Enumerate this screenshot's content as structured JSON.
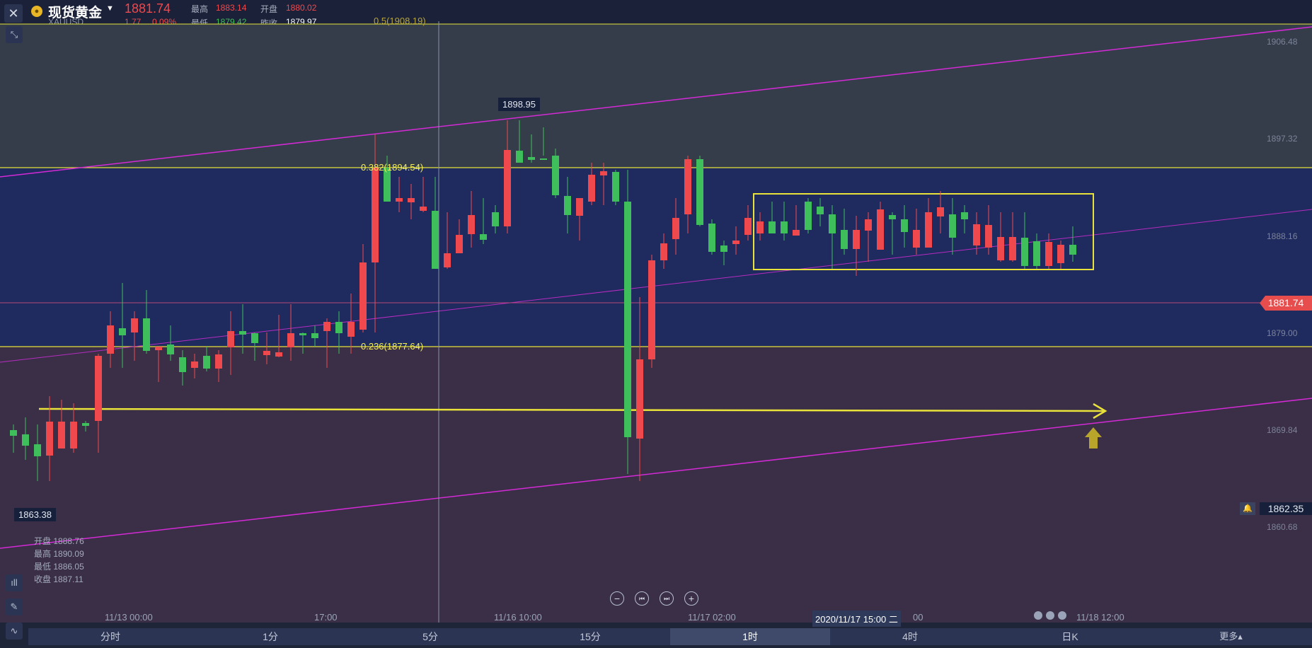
{
  "header": {
    "close_glyph": "✕",
    "coin_glyph": "●",
    "title": "现货黄金",
    "caret": "▼",
    "symbol": "XAUUSD",
    "price": "1881.74",
    "change": "1.77",
    "change_pct": "0.09%",
    "high_label": "最高",
    "high": "1883.14",
    "open_label": "开盘",
    "open": "1880.02",
    "low_label": "最低",
    "low": "1879.42",
    "prev_close_label": "昨收",
    "prev_close": "1879.97"
  },
  "left_tools": {
    "top_tool": "⤡",
    "indicator": "ıll",
    "draw": "✎",
    "chart_type": "∿"
  },
  "chart": {
    "fib_top_label": "0.5(1908.19)",
    "fib_382_label": "0.382(1894.54)",
    "fib_236_label": "0.236(1877.64)",
    "high_marker": "1898.95",
    "low_marker": "1863.38",
    "price_tag": "1881.74",
    "alert_price": "1862.35",
    "bell_glyph": "🔔",
    "y_labels": [
      "1906.48",
      "1897.32",
      "1888.16",
      "1879.00",
      "1869.84",
      "1860.68"
    ],
    "x_labels": [
      "11/13 00:00",
      "17:00",
      "11/16 10:00",
      "11/17 02:00",
      "00",
      "11/18 12:00"
    ],
    "crosshair_time": "2020/11/17 15:00 二",
    "ohlc": {
      "open_label": "开盘",
      "open": "1888.76",
      "high_label": "最高",
      "high": "1890.09",
      "low_label": "最低",
      "low": "1886.05",
      "close_label": "收盘",
      "close": "1887.11"
    },
    "colors": {
      "up": "#3fbf5b",
      "down": "#f0494d",
      "fib": "#e8e23a",
      "channel": "#d42ad6"
    }
  },
  "controls": {
    "zoom_out": "−",
    "prev": "⏮",
    "next": "⏭",
    "zoom_in": "+"
  },
  "timeframes": [
    "分时",
    "1分",
    "5分",
    "15分",
    "1时",
    "4时",
    "日K"
  ],
  "more_label": "更多▴"
}
